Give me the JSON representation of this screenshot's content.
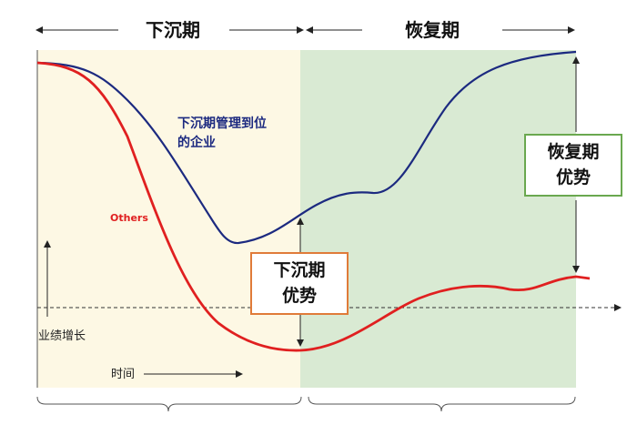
{
  "phases": {
    "downturn": {
      "title": "下沉期",
      "color": "#fdf8e4"
    },
    "recovery": {
      "title": "恢复期",
      "color": "#d9ead3"
    }
  },
  "labels": {
    "blue_curve_line1": "下沉期管理到位",
    "blue_curve_line2": "的企业",
    "red_curve": "Others",
    "y_axis": "业绩增长",
    "x_axis": "时间"
  },
  "boxes": {
    "downturn_advantage": {
      "line1": "下沉期",
      "line2": "优势",
      "border_color": "#e07b39"
    },
    "recovery_advantage": {
      "line1": "恢复期",
      "line2": "优势",
      "border_color": "#6aa84f"
    }
  },
  "colors": {
    "blue_curve": "#1c2a80",
    "red_curve": "#e02020",
    "blue_text": "#1c2a80",
    "red_text": "#e02020"
  }
}
